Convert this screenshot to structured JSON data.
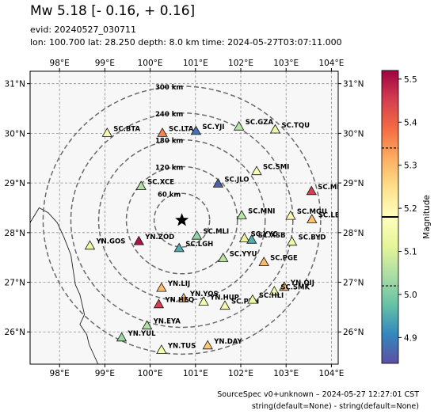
{
  "header": {
    "title": "Mw 5.18 [- 0.16, + 0.16]",
    "evid": "evid: 20240527_030711",
    "info": "lon: 100.700 lat: 28.250 depth: 8.0 km time: 2024-05-27T03:07:11.000"
  },
  "map": {
    "lon_range": [
      97.35,
      104.15
    ],
    "lat_range": [
      25.35,
      31.25
    ],
    "lon_ticks": [
      98,
      99,
      100,
      101,
      102,
      103,
      104
    ],
    "lat_ticks": [
      26,
      27,
      28,
      29,
      30,
      31
    ],
    "lon_tick_labels": [
      "98°E",
      "99°E",
      "100°E",
      "101°E",
      "102°E",
      "103°E",
      "104°E"
    ],
    "lat_tick_labels": [
      "26°N",
      "27°N",
      "28°N",
      "29°N",
      "30°N",
      "31°N"
    ],
    "grid": true,
    "epicenter": {
      "lon": 100.7,
      "lat": 28.25,
      "symbol": "star"
    },
    "distance_rings": [
      {
        "km": 60,
        "label": "60 km"
      },
      {
        "km": 120,
        "label": "120 km"
      },
      {
        "km": 180,
        "label": "180 km"
      },
      {
        "km": 240,
        "label": "240 km"
      },
      {
        "km": 300,
        "label": "300 km"
      }
    ],
    "stations": [
      {
        "name": "SC.BTA",
        "lon": 99.05,
        "lat": 30.0,
        "mag": 5.15
      },
      {
        "name": "SC.LTA",
        "lon": 100.27,
        "lat": 30.0,
        "mag": 5.36
      },
      {
        "name": "SC.YJI",
        "lon": 101.01,
        "lat": 30.04,
        "mag": 4.88
      },
      {
        "name": "SC.GZA",
        "lon": 101.96,
        "lat": 30.13,
        "mag": 5.06
      },
      {
        "name": "SC.TQU",
        "lon": 102.76,
        "lat": 30.07,
        "mag": 5.14
      },
      {
        "name": "SC.SMI",
        "lon": 102.35,
        "lat": 29.23,
        "mag": 5.16
      },
      {
        "name": "SC.XCE",
        "lon": 99.8,
        "lat": 28.93,
        "mag": 5.05
      },
      {
        "name": "SC.JLO",
        "lon": 101.5,
        "lat": 28.98,
        "mag": 4.86
      },
      {
        "name": "SC.MBI",
        "lon": 103.56,
        "lat": 28.83,
        "mag": 5.45
      },
      {
        "name": "SC.MNI",
        "lon": 102.02,
        "lat": 28.34,
        "mag": 5.06
      },
      {
        "name": "SC.MGU",
        "lon": 103.1,
        "lat": 28.33,
        "mag": 5.2
      },
      {
        "name": "SC.LBO",
        "lon": 103.57,
        "lat": 28.26,
        "mag": 5.29
      },
      {
        "name": "SC.MLI",
        "lon": 101.03,
        "lat": 27.93,
        "mag": 5.02
      },
      {
        "name": "SC.YYC",
        "lon": 102.08,
        "lat": 27.88,
        "mag": 5.12
      },
      {
        "name": "SC.XSB",
        "lon": 102.24,
        "lat": 27.85,
        "mag": 4.95
      },
      {
        "name": "SC.BYD",
        "lon": 103.13,
        "lat": 27.81,
        "mag": 5.14
      },
      {
        "name": "YN.ZOD",
        "lon": 99.75,
        "lat": 27.82,
        "mag": 5.5
      },
      {
        "name": "YN.GOS",
        "lon": 98.67,
        "lat": 27.73,
        "mag": 5.13
      },
      {
        "name": "SC.LGH",
        "lon": 100.64,
        "lat": 27.68,
        "mag": 4.95
      },
      {
        "name": "SC.YYU",
        "lon": 101.61,
        "lat": 27.48,
        "mag": 5.06
      },
      {
        "name": "SC.PGE",
        "lon": 102.51,
        "lat": 27.4,
        "mag": 5.3
      },
      {
        "name": "YN.LIJ",
        "lon": 100.25,
        "lat": 26.88,
        "mag": 5.3
      },
      {
        "name": "YN.QIJ",
        "lon": 102.96,
        "lat": 26.9,
        "mag": 5.3
      },
      {
        "name": "SC.SMK",
        "lon": 102.74,
        "lat": 26.81,
        "mag": 5.15
      },
      {
        "name": "YN.YOS",
        "lon": 100.74,
        "lat": 26.67,
        "mag": 5.3
      },
      {
        "name": "YN.HEQ",
        "lon": 100.19,
        "lat": 26.55,
        "mag": 5.45
      },
      {
        "name": "YN.HUP",
        "lon": 101.18,
        "lat": 26.6,
        "mag": 5.15
      },
      {
        "name": "SC.PZH",
        "lon": 101.65,
        "lat": 26.52,
        "mag": 5.15
      },
      {
        "name": "SC.HLI",
        "lon": 102.26,
        "lat": 26.64,
        "mag": 5.13
      },
      {
        "name": "YN.EYA",
        "lon": 99.93,
        "lat": 26.12,
        "mag": 5.05
      },
      {
        "name": "YN.YUL",
        "lon": 99.37,
        "lat": 25.88,
        "mag": 5.03
      },
      {
        "name": "YN.TUS",
        "lon": 100.25,
        "lat": 25.63,
        "mag": 5.15
      },
      {
        "name": "YN.DAY",
        "lon": 101.27,
        "lat": 25.72,
        "mag": 5.28
      }
    ],
    "border_lonlat": [
      [
        97.35,
        28.2
      ],
      [
        97.55,
        28.5
      ],
      [
        97.75,
        28.4
      ],
      [
        97.95,
        28.2
      ],
      [
        98.1,
        27.9
      ],
      [
        98.25,
        27.55
      ],
      [
        98.3,
        27.25
      ],
      [
        98.35,
        26.95
      ],
      [
        98.45,
        26.75
      ],
      [
        98.5,
        26.55
      ],
      [
        98.55,
        26.35
      ],
      [
        98.45,
        26.15
      ],
      [
        98.6,
        25.95
      ],
      [
        98.65,
        25.75
      ],
      [
        98.75,
        25.55
      ],
      [
        98.85,
        25.35
      ]
    ]
  },
  "colorbar": {
    "label": "Magnitude",
    "vmin": 4.84,
    "vmax": 5.52,
    "ticks": [
      4.9,
      5.0,
      5.1,
      5.2,
      5.3,
      5.4,
      5.5
    ],
    "tick_labels": [
      "4.9",
      "5.0",
      "5.1",
      "5.2",
      "5.3",
      "5.4",
      "5.5"
    ],
    "mw_value": 5.18,
    "mw_lower": 5.02,
    "mw_upper": 5.34,
    "colormap": [
      "#5e4fa2",
      "#3288bd",
      "#66c2a5",
      "#abdda4",
      "#e6f598",
      "#ffffbf",
      "#fee08b",
      "#fdae61",
      "#f46d43",
      "#d53e4f",
      "#9e0142"
    ]
  },
  "footer": {
    "line1": "SourceSpec v0+unknown – 2024-05-27 12:27:01 CST",
    "line2": "string(default=None) - string(default=None)"
  }
}
